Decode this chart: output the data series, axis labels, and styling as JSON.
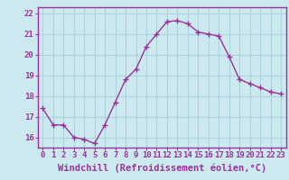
{
  "x": [
    0,
    1,
    2,
    3,
    4,
    5,
    6,
    7,
    8,
    9,
    10,
    11,
    12,
    13,
    14,
    15,
    16,
    17,
    18,
    19,
    20,
    21,
    22,
    23
  ],
  "y": [
    17.4,
    16.6,
    16.6,
    16.0,
    15.9,
    15.7,
    16.6,
    17.7,
    18.8,
    19.3,
    20.4,
    21.0,
    21.6,
    21.65,
    21.5,
    21.1,
    21.0,
    20.9,
    19.9,
    18.8,
    18.6,
    18.4,
    18.2,
    18.1
  ],
  "ylim": [
    15.5,
    22.3
  ],
  "xlim": [
    -0.5,
    23.5
  ],
  "yticks": [
    16,
    17,
    18,
    19,
    20,
    21,
    22
  ],
  "xticks": [
    0,
    1,
    2,
    3,
    4,
    5,
    6,
    7,
    8,
    9,
    10,
    11,
    12,
    13,
    14,
    15,
    16,
    17,
    18,
    19,
    20,
    21,
    22,
    23
  ],
  "line_color": "#993399",
  "marker_color": "#993399",
  "bg_color": "#cce9f0",
  "grid_color": "#aad4e0",
  "spine_color": "#993399",
  "tick_color": "#993399",
  "xlabel": "Windchill (Refroidissement éolien,°C)",
  "xlabel_color": "#993399",
  "xlabel_fontsize": 7.5,
  "tick_fontsize": 6.5
}
